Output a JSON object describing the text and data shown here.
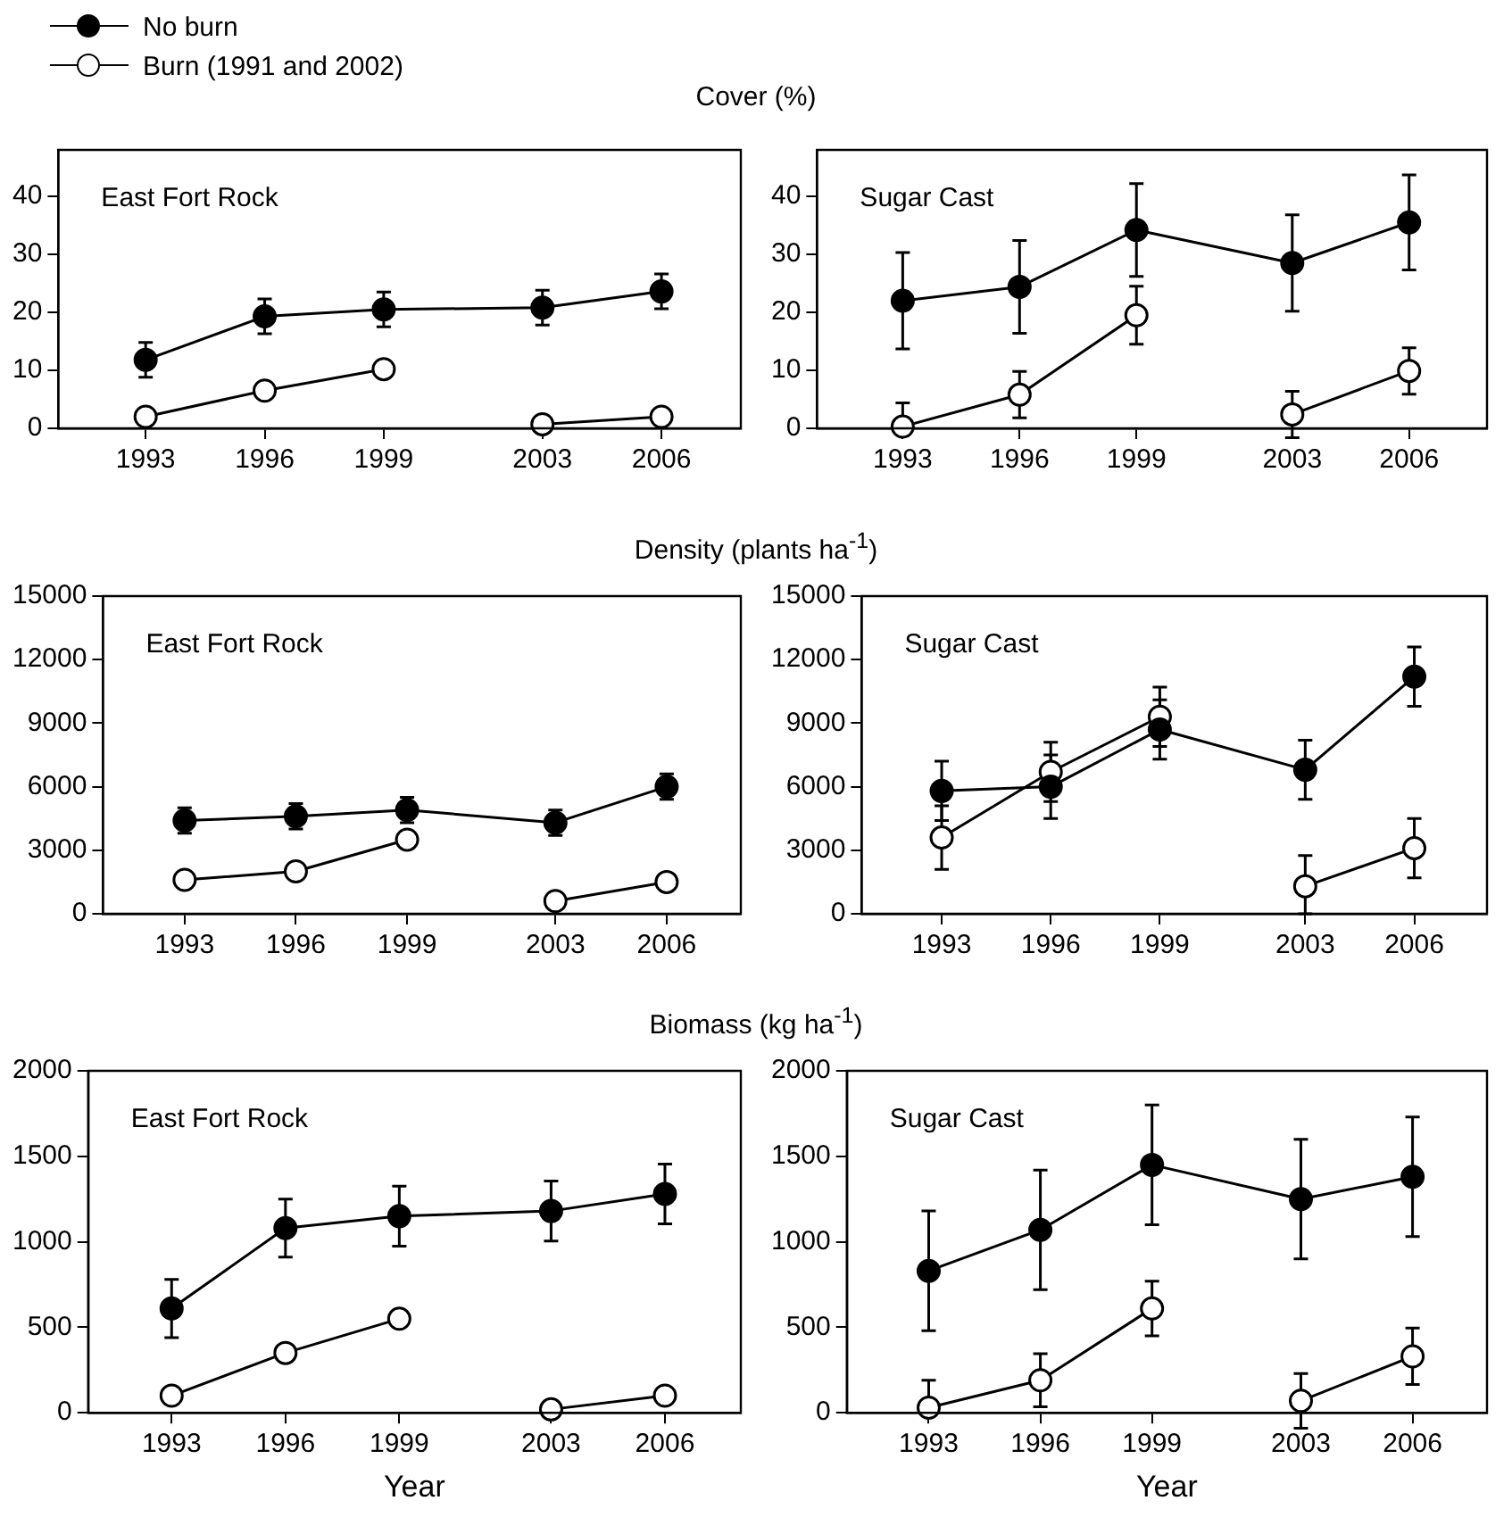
{
  "chart_data": [
    {
      "type": "line",
      "title": "East Fort Rock",
      "subtitle": "Cover (%)",
      "legend": "top left",
      "marker": "circle",
      "grid": false,
      "xlim": [
        1990.8,
        2008
      ],
      "xticks": [
        1993,
        1996,
        1999,
        2003,
        2006
      ],
      "ylim": [
        0,
        48
      ],
      "yticks": [
        0,
        10,
        20,
        30,
        40
      ],
      "series": [
        {
          "name": "No burn",
          "color": "#000000",
          "x": [
            1993,
            1996,
            1999,
            2003,
            2006
          ],
          "values": [
            11.8,
            19.3,
            20.5,
            20.8,
            23.6
          ],
          "errors": [
            3,
            3,
            3,
            3,
            3
          ]
        },
        {
          "name": "Burn (1991 and 2002)",
          "color": "#ffffff",
          "x": [
            1993,
            1996,
            1999
          ],
          "values": [
            2.0,
            6.5,
            10.2
          ]
        },
        {
          "color": "#ffffff",
          "x": [
            2003,
            2006
          ],
          "values": [
            0.7,
            2.0
          ]
        }
      ]
    },
    {
      "type": "line",
      "title": "Sugar Cast",
      "marker": "circle",
      "grid": false,
      "xlim": [
        1990.8,
        2008
      ],
      "xticks": [
        1993,
        1996,
        1999,
        2003,
        2006
      ],
      "ylim": [
        0,
        48
      ],
      "yticks": [
        0,
        10,
        20,
        30,
        40
      ],
      "series": [
        {
          "color": "#000000",
          "x": [
            1993,
            1996,
            1999,
            2003,
            2006
          ],
          "values": [
            22,
            24.4,
            34.2,
            28.5,
            35.5
          ],
          "errors": [
            8.3,
            8,
            8,
            8.3,
            8.2
          ]
        },
        {
          "color": "#ffffff",
          "x": [
            1993,
            1996,
            1999
          ],
          "values": [
            0.3,
            5.8,
            19.5
          ],
          "errors": [
            [
              0,
              4.4
            ],
            4,
            5
          ]
        },
        {
          "color": "#ffffff",
          "x": [
            2003,
            2006
          ],
          "values": [
            2.4,
            9.9
          ],
          "errors": [
            4,
            4
          ]
        }
      ]
    },
    {
      "type": "line",
      "title": "East Fort Rock",
      "subtitle": "Density (plants ha$^{-1}$)",
      "marker": "circle",
      "grid": false,
      "xlim": [
        1990.8,
        2008
      ],
      "xticks": [
        1993,
        1996,
        1999,
        2003,
        2006
      ],
      "ylim": [
        0,
        15000
      ],
      "yticks": [
        0,
        3000,
        6000,
        9000,
        12000,
        15000
      ],
      "series": [
        {
          "color": "#000000",
          "x": [
            1993,
            1996,
            1999,
            2003,
            2006
          ],
          "values": [
            4400,
            4600,
            4900,
            4300,
            6000
          ],
          "errors": [
            600,
            600,
            600,
            600,
            600
          ]
        },
        {
          "color": "#ffffff",
          "x": [
            1993,
            1996,
            1999
          ],
          "values": [
            1600,
            2000,
            3500
          ]
        },
        {
          "color": "#ffffff",
          "x": [
            2003,
            2006
          ],
          "values": [
            600,
            1500
          ]
        }
      ]
    },
    {
      "type": "line",
      "title": "Sugar Cast",
      "marker": "circle",
      "grid": false,
      "xlim": [
        1990.8,
        2008
      ],
      "xticks": [
        1993,
        1996,
        1999,
        2003,
        2006
      ],
      "ylim": [
        0,
        15000
      ],
      "yticks": [
        0,
        3000,
        6000,
        9000,
        12000,
        15000
      ],
      "series": [
        {
          "color": "#000000",
          "x": [
            1993,
            1996,
            1999,
            2003,
            2006
          ],
          "values": [
            5800,
            6000,
            8700,
            6800,
            11200
          ],
          "errors": [
            1400,
            1500,
            1400,
            1400,
            1400
          ]
        },
        {
          "color": "#ffffff",
          "x": [
            1993,
            1996,
            1999
          ],
          "values": [
            3600,
            6700,
            9300
          ],
          "errors": [
            1500,
            1400,
            1400
          ]
        },
        {
          "color": "#ffffff",
          "x": [
            2003,
            2006
          ],
          "values": [
            1300,
            3100
          ],
          "errors": [
            [
              0,
              2750
            ],
            1400
          ]
        }
      ]
    },
    {
      "type": "line",
      "title": "East Fort Rock",
      "subtitle": "Biomass (kg ha$^{-1}$)",
      "xlabel": "Year",
      "marker": "circle",
      "grid": false,
      "xlim": [
        1990.8,
        2008
      ],
      "xticks": [
        1993,
        1996,
        1999,
        2003,
        2006
      ],
      "ylim": [
        0,
        2000
      ],
      "yticks": [
        0,
        500,
        1000,
        1500,
        2000
      ],
      "series": [
        {
          "color": "#000000",
          "x": [
            1993,
            1996,
            1999,
            2003,
            2006
          ],
          "values": [
            610,
            1080,
            1150,
            1180,
            1280
          ],
          "errors": [
            170,
            170,
            175,
            175,
            175
          ]
        },
        {
          "color": "#ffffff",
          "x": [
            1993,
            1996,
            1999
          ],
          "values": [
            100,
            350,
            550
          ]
        },
        {
          "color": "#ffffff",
          "x": [
            2003,
            2006
          ],
          "values": [
            20,
            100
          ]
        }
      ]
    },
    {
      "type": "line",
      "title": "Sugar Cast",
      "xlabel": "Year",
      "marker": "circle",
      "grid": false,
      "xlim": [
        1990.8,
        2008
      ],
      "xticks": [
        1993,
        1996,
        1999,
        2003,
        2006
      ],
      "ylim": [
        0,
        2000
      ],
      "yticks": [
        0,
        500,
        1000,
        1500,
        2000
      ],
      "series": [
        {
          "color": "#000000",
          "x": [
            1993,
            1996,
            1999,
            2003,
            2006
          ],
          "values": [
            830,
            1070,
            1450,
            1250,
            1380
          ],
          "errors": [
            350,
            350,
            350,
            350,
            350
          ]
        },
        {
          "color": "#ffffff",
          "x": [
            1993,
            1996,
            1999
          ],
          "values": [
            30,
            190,
            610
          ],
          "errors": [
            [
              0,
              190
            ],
            155,
            160
          ]
        },
        {
          "color": "#ffffff",
          "x": [
            2003,
            2006
          ],
          "values": [
            70,
            330
          ],
          "errors": [
            160,
            165
          ]
        }
      ]
    }
  ]
}
